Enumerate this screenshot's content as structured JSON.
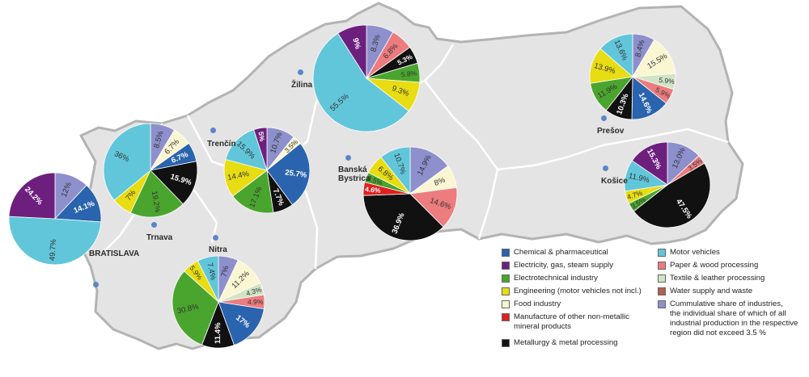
{
  "colors": {
    "background": "#ffffff",
    "region_fill": "#e4e4e4",
    "region_border": "#ffffff",
    "country_border": "#b3b3b3",
    "city_dot": "#5b86c9"
  },
  "categories": {
    "chemical": {
      "label": "Chemical & pharmaceutical",
      "color": "#2a63ae"
    },
    "electricity": {
      "label": "Electricity, gas, steam supply",
      "color": "#6d1f7e"
    },
    "electrotechnical": {
      "label": "Electrotechnical industry",
      "color": "#4aa52e"
    },
    "engineering": {
      "label": "Engineering (motor vehicles not incl.)",
      "color": "#e8dc12"
    },
    "food": {
      "label": "Food industry",
      "color": "#fbf6d2"
    },
    "nonmetallic": {
      "label": "Manufacture of other non-metallic\nmineral products",
      "color": "#e02020"
    },
    "metallurgy": {
      "label": "Metallurgy & metal processing",
      "color": "#111111"
    },
    "motor": {
      "label": "Motor vehicles",
      "color": "#61c6d9"
    },
    "paper": {
      "label": "Paper & wood processing",
      "color": "#ec7c7e"
    },
    "textile": {
      "label": "Textile & leather processing",
      "color": "#cfe5c4"
    },
    "water": {
      "label": "Water supply and waste",
      "color": "#b0614b"
    },
    "cumulative": {
      "label": "Cummulative share of industries,\nthe individual share of which of all\nindustrial production in the respective\nregion did not exceed 3.5 %",
      "color": "#8d90cc"
    }
  },
  "legend": {
    "left_column": [
      "chemical",
      "electricity",
      "electrotechnical",
      "engineering",
      "food",
      "nonmetallic",
      "metallurgy"
    ],
    "right_column": [
      "motor",
      "paper",
      "textile",
      "water",
      "cumulative"
    ]
  },
  "cities": [
    {
      "id": "bratislava",
      "label": "BRATISLAVA"
    },
    {
      "id": "trnava",
      "label": "Trnava"
    },
    {
      "id": "nitra",
      "label": "Nitra"
    },
    {
      "id": "trencin",
      "label": "Trenčín"
    },
    {
      "id": "zilina",
      "label": "Žilina"
    },
    {
      "id": "banska",
      "label": "Banská\nBystrica"
    },
    {
      "id": "presov",
      "label": "Prešov"
    },
    {
      "id": "kosice",
      "label": "Košice"
    }
  ],
  "chart_data": [
    {
      "type": "pie",
      "region": "Bratislava",
      "slices": [
        {
          "category": "cumulative",
          "value": 12,
          "label": "12%"
        },
        {
          "category": "chemical",
          "value": 14.1,
          "label": "14.1%"
        },
        {
          "category": "motor",
          "value": 49.7,
          "label": "49.7%"
        },
        {
          "category": "electricity",
          "value": 24.2,
          "label": "24.2%"
        }
      ]
    },
    {
      "type": "pie",
      "region": "Trnava",
      "slices": [
        {
          "category": "cumulative",
          "value": 8.5,
          "label": "8.5%"
        },
        {
          "category": "food",
          "value": 6.7,
          "label": "6.7%"
        },
        {
          "category": "chemical",
          "value": 6.7,
          "label": "6.7%"
        },
        {
          "category": "metallurgy",
          "value": 15.9,
          "label": "15.9%"
        },
        {
          "category": "electrotechnical",
          "value": 19.2,
          "label": "19.2%"
        },
        {
          "category": "engineering",
          "value": 7,
          "label": "7%"
        },
        {
          "category": "motor",
          "value": 36,
          "label": "36%"
        }
      ]
    },
    {
      "type": "pie",
      "region": "Trenčín",
      "slices": [
        {
          "category": "cumulative",
          "value": 10.7,
          "label": "10.7%"
        },
        {
          "category": "food",
          "value": 3.5,
          "label": "3.5%"
        },
        {
          "category": "chemical",
          "value": 25.7,
          "label": "25.7%"
        },
        {
          "category": "metallurgy",
          "value": 7.7,
          "label": "7.7%"
        },
        {
          "category": "electrotechnical",
          "value": 17.1,
          "label": "17.1%"
        },
        {
          "category": "engineering",
          "value": 14.4,
          "label": "14.4%"
        },
        {
          "category": "motor",
          "value": 15.9,
          "label": "15.9%"
        },
        {
          "category": "electricity",
          "value": 5,
          "label": "5%"
        }
      ]
    },
    {
      "type": "pie",
      "region": "Žilina",
      "slices": [
        {
          "category": "cumulative",
          "value": 8.3,
          "label": "8.3%"
        },
        {
          "category": "paper",
          "value": 6.8,
          "label": "6.8%"
        },
        {
          "category": "metallurgy",
          "value": 5.3,
          "label": "5.3%"
        },
        {
          "category": "electrotechnical",
          "value": 5.8,
          "label": "5.8%"
        },
        {
          "category": "engineering",
          "value": 9.3,
          "label": "9.3%"
        },
        {
          "category": "motor",
          "value": 55.5,
          "label": "55.5%"
        },
        {
          "category": "electricity",
          "value": 9,
          "label": "9%"
        }
      ]
    },
    {
      "type": "pie",
      "region": "Nitra",
      "slices": [
        {
          "category": "cumulative",
          "value": 7,
          "label": "7%"
        },
        {
          "category": "food",
          "value": 11.2,
          "label": "11.2%"
        },
        {
          "category": "textile",
          "value": 4.3,
          "label": "4.3%"
        },
        {
          "category": "paper",
          "value": 4.9,
          "label": "4.9%"
        },
        {
          "category": "chemical",
          "value": 17,
          "label": "17%"
        },
        {
          "category": "metallurgy",
          "value": 11.4,
          "label": "11.4%"
        },
        {
          "category": "electrotechnical",
          "value": 30.8,
          "label": "30.8%"
        },
        {
          "category": "engineering",
          "value": 5.9,
          "label": "5.9%"
        },
        {
          "category": "motor",
          "value": 7.4,
          "label": "7.4%"
        }
      ]
    },
    {
      "type": "pie",
      "region": "Banská Bystrica",
      "slices": [
        {
          "category": "cumulative",
          "value": 14.9,
          "label": "14.9%"
        },
        {
          "category": "food",
          "value": 8,
          "label": "8%"
        },
        {
          "category": "paper",
          "value": 14.6,
          "label": "14.6%"
        },
        {
          "category": "metallurgy",
          "value": 36.9,
          "label": "36.9%"
        },
        {
          "category": "nonmetallic",
          "value": 4.6,
          "label": "4.6%"
        },
        {
          "category": "electrotechnical",
          "value": 3.5,
          "label": "3.5%"
        },
        {
          "category": "engineering",
          "value": 6.8,
          "label": "6.8%"
        },
        {
          "category": "motor",
          "value": 10.7,
          "label": "10.7%"
        }
      ]
    },
    {
      "type": "pie",
      "region": "Prešov",
      "slices": [
        {
          "category": "cumulative",
          "value": 8.4,
          "label": "8.4%"
        },
        {
          "category": "food",
          "value": 15.5,
          "label": "15.5%"
        },
        {
          "category": "textile",
          "value": 5.9,
          "label": "5.9%"
        },
        {
          "category": "paper",
          "value": 5.9,
          "label": "5.9%"
        },
        {
          "category": "chemical",
          "value": 14.6,
          "label": "14.6%"
        },
        {
          "category": "metallurgy",
          "value": 10.3,
          "label": "10.3%"
        },
        {
          "category": "electrotechnical",
          "value": 11.9,
          "label": "11.9%"
        },
        {
          "category": "engineering",
          "value": 13.9,
          "label": "13.9%"
        },
        {
          "category": "motor",
          "value": 13.6,
          "label": "13.6%"
        }
      ]
    },
    {
      "type": "pie",
      "region": "Košice",
      "slices": [
        {
          "category": "cumulative",
          "value": 13,
          "label": "13.0%"
        },
        {
          "category": "paper",
          "value": 3.5,
          "label": "3.5%"
        },
        {
          "category": "metallurgy",
          "value": 47.5,
          "label": "47.5%"
        },
        {
          "category": "electrotechnical",
          "value": 3.5,
          "label": "3.5%"
        },
        {
          "category": "engineering",
          "value": 4.7,
          "label": "4.7%"
        },
        {
          "category": "motor",
          "value": 11.9,
          "label": "11.9%"
        },
        {
          "category": "electricity",
          "value": 15.3,
          "label": "15.3%"
        }
      ]
    }
  ]
}
